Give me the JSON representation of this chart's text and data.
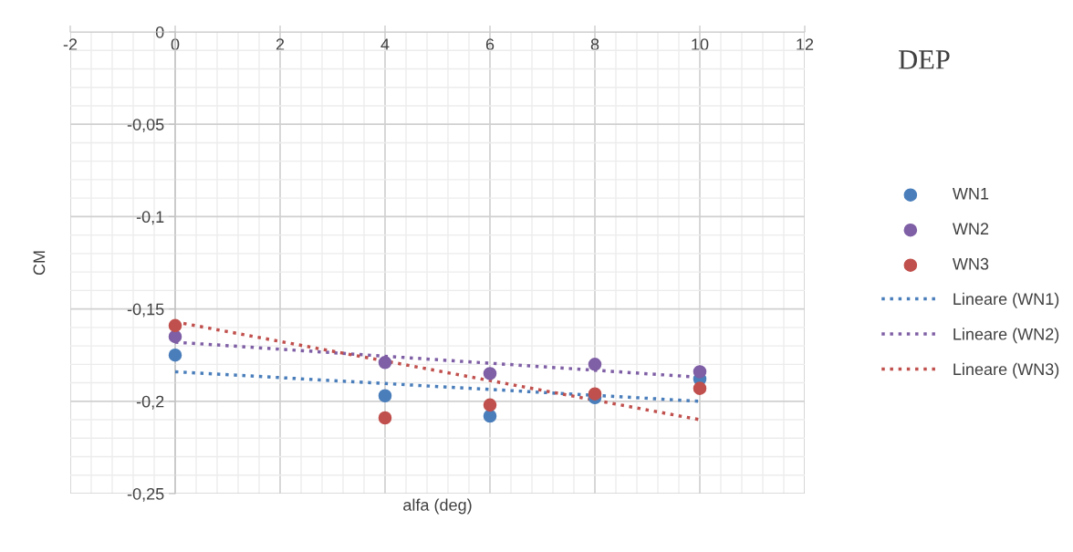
{
  "chart_data": {
    "type": "scatter",
    "title": "DEP",
    "xlabel": "alfa (deg)",
    "ylabel": "CM",
    "xlim": [
      -2,
      12
    ],
    "ylim": [
      -0.25,
      0
    ],
    "xticks": [
      -2,
      0,
      2,
      4,
      6,
      8,
      10,
      12
    ],
    "yticks": [
      {
        "value": 0,
        "label": "0"
      },
      {
        "value": -0.05,
        "label": "-0,05"
      },
      {
        "value": -0.1,
        "label": "-0,1"
      },
      {
        "value": -0.15,
        "label": "-0,15"
      },
      {
        "value": -0.2,
        "label": "-0,2"
      },
      {
        "value": -0.25,
        "label": "-0,25"
      }
    ],
    "grid": true,
    "legend": "right",
    "series": [
      {
        "name": "WN1",
        "marker": "circle",
        "color": "#4a7ebb",
        "x": [
          0,
          4,
          6,
          8,
          10
        ],
        "values": [
          -0.175,
          -0.197,
          -0.208,
          -0.198,
          -0.188
        ]
      },
      {
        "name": "WN2",
        "marker": "circle",
        "color": "#7f5fa5",
        "x": [
          0,
          4,
          6,
          8,
          10
        ],
        "values": [
          -0.165,
          -0.179,
          -0.185,
          -0.18,
          -0.184
        ]
      },
      {
        "name": "WN3",
        "marker": "circle",
        "color": "#c0504d",
        "x": [
          0,
          4,
          6,
          8,
          10
        ],
        "values": [
          -0.159,
          -0.209,
          -0.202,
          -0.196,
          -0.193
        ]
      },
      {
        "name": "Lineare (WN1)",
        "type": "line",
        "marker": "none",
        "line_style": "dotted",
        "color": "#4a7ebb",
        "x": [
          0,
          10
        ],
        "values": [
          -0.184,
          -0.2
        ]
      },
      {
        "name": "Lineare (WN2)",
        "type": "line",
        "marker": "none",
        "line_style": "dotted",
        "color": "#7f5fa5",
        "x": [
          0,
          10
        ],
        "values": [
          -0.168,
          -0.187
        ]
      },
      {
        "name": "Lineare (WN3)",
        "type": "line",
        "marker": "none",
        "line_style": "dotted",
        "color": "#c0504d",
        "x": [
          0,
          10
        ],
        "values": [
          -0.157,
          -0.21
        ]
      }
    ]
  }
}
